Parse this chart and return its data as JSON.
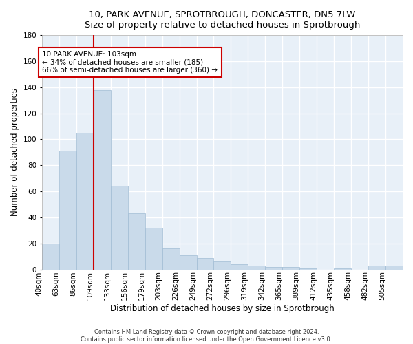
{
  "title_line1": "10, PARK AVENUE, SPROTBROUGH, DONCASTER, DN5 7LW",
  "title_line2": "Size of property relative to detached houses in Sprotbrough",
  "xlabel": "Distribution of detached houses by size in Sprotbrough",
  "ylabel": "Number of detached properties",
  "bar_color": "#c9daea",
  "bar_edge_color": "#a0bcd4",
  "background_color": "#e8f0f8",
  "grid_color": "#ffffff",
  "vline_x": 3,
  "vline_color": "#cc0000",
  "categories": [
    "40sqm",
    "63sqm",
    "86sqm",
    "109sqm",
    "133sqm",
    "156sqm",
    "179sqm",
    "203sqm",
    "226sqm",
    "249sqm",
    "272sqm",
    "296sqm",
    "319sqm",
    "342sqm",
    "365sqm",
    "389sqm",
    "412sqm",
    "435sqm",
    "458sqm",
    "482sqm",
    "505sqm"
  ],
  "values": [
    20,
    91,
    105,
    138,
    64,
    43,
    32,
    16,
    11,
    9,
    6,
    4,
    3,
    2,
    2,
    1,
    0,
    1,
    0,
    3,
    3
  ],
  "ylim": [
    0,
    180
  ],
  "yticks": [
    0,
    20,
    40,
    60,
    80,
    100,
    120,
    140,
    160,
    180
  ],
  "annotation_text": "10 PARK AVENUE: 103sqm\n← 34% of detached houses are smaller (185)\n66% of semi-detached houses are larger (360) →",
  "annotation_box_color": "#ffffff",
  "annotation_box_edge": "#cc0000",
  "footer_line1": "Contains HM Land Registry data © Crown copyright and database right 2024.",
  "footer_line2": "Contains public sector information licensed under the Open Government Licence v3.0.",
  "title_fontsize": 9.5,
  "axis_label_fontsize": 8.5,
  "tick_fontsize": 7.5,
  "annotation_fontsize": 7.5,
  "footer_fontsize": 6.0
}
